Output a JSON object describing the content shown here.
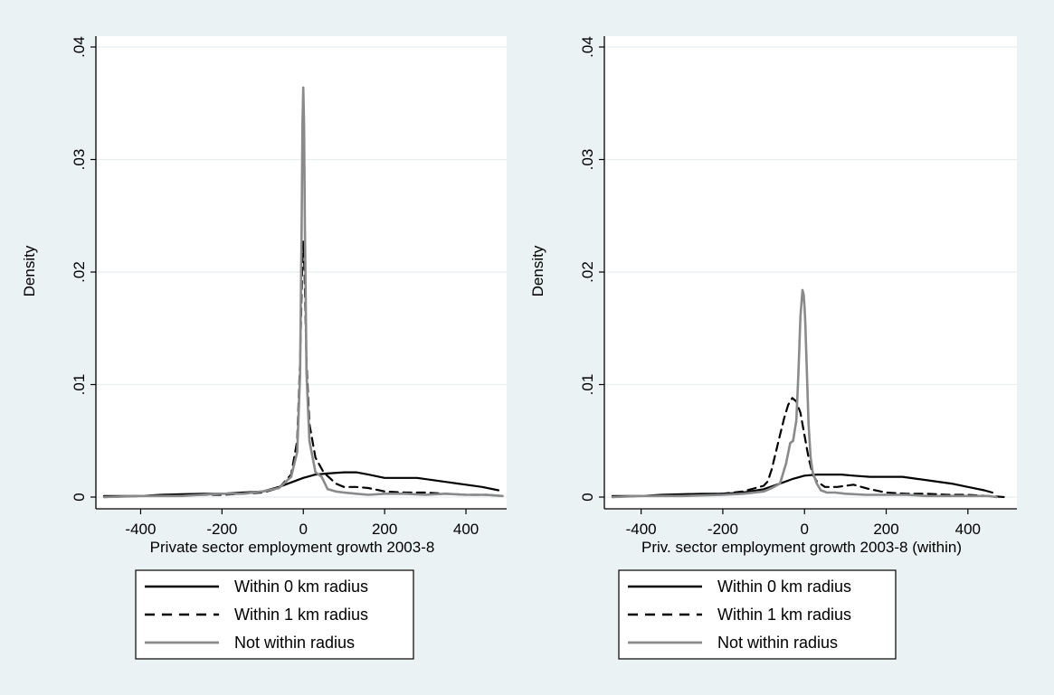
{
  "colors": {
    "outer_background": "#eaf2f3",
    "plot_background": "#ffffff",
    "gridline": "#e8eef0",
    "axis": "#000000",
    "within_0km": "#000000",
    "within_1km": "#000000",
    "not_within": "#8a8a8a"
  },
  "chart_data": [
    {
      "type": "line",
      "title": "",
      "xlabel": "Private sector employment growth 2003-8",
      "ylabel": "Density",
      "xlim": [
        -510,
        500
      ],
      "ylim": [
        0,
        0.04
      ],
      "xticks": [
        -400,
        -200,
        0,
        200,
        400
      ],
      "xtick_labels": [
        "-400",
        "-200",
        "0",
        "200",
        "400"
      ],
      "yticks": [
        0,
        0.01,
        0.02,
        0.03,
        0.04
      ],
      "ytick_labels": [
        "0",
        ".01",
        ".02",
        ".03",
        ".04"
      ],
      "grid": true,
      "legend_position": "bottom",
      "legend": [
        "Within 0 km radius",
        "Within 1 km radius",
        "Not within radius"
      ],
      "series": [
        {
          "name": "Within 0 km radius",
          "style": "solid",
          "color": "#000000",
          "x": [
            -490,
            -400,
            -350,
            -300,
            -250,
            -200,
            -150,
            -100,
            -60,
            -30,
            0,
            30,
            60,
            100,
            130,
            160,
            200,
            240,
            280,
            320,
            360,
            400,
            440,
            480
          ],
          "y": [
            0.0001,
            0.0001,
            0.0002,
            0.00025,
            0.0003,
            0.0003,
            0.0004,
            0.0005,
            0.0009,
            0.0013,
            0.0017,
            0.002,
            0.0021,
            0.0022,
            0.0022,
            0.002,
            0.0017,
            0.0017,
            0.0017,
            0.0015,
            0.0013,
            0.0011,
            0.0009,
            0.0006
          ]
        },
        {
          "name": "Within 1 km radius",
          "style": "dashed",
          "color": "#000000",
          "x": [
            -490,
            -400,
            -300,
            -200,
            -150,
            -100,
            -60,
            -30,
            -15,
            -8,
            -3,
            0,
            3,
            8,
            15,
            30,
            50,
            80,
            100,
            130,
            160,
            200,
            250,
            300,
            350,
            400,
            450,
            490
          ],
          "y": [
            0,
            0.0001,
            0.0002,
            0.0002,
            0.0003,
            0.0004,
            0.0008,
            0.002,
            0.005,
            0.012,
            0.02,
            0.0227,
            0.02,
            0.012,
            0.0065,
            0.0035,
            0.0022,
            0.0012,
            0.0009,
            0.0009,
            0.0008,
            0.0005,
            0.0004,
            0.0004,
            0.0003,
            0.0002,
            0.0002,
            0.0001
          ]
        },
        {
          "name": "Not within radius",
          "style": "solid",
          "color": "#8a8a8a",
          "x": [
            -490,
            -400,
            -300,
            -250,
            -200,
            -150,
            -100,
            -60,
            -30,
            -15,
            -8,
            -4,
            -2,
            0,
            2,
            4,
            8,
            15,
            30,
            45,
            60,
            80,
            100,
            130,
            160,
            200,
            250,
            300,
            350,
            400,
            450,
            490
          ],
          "y": [
            0,
            0.0001,
            0.0001,
            0.0002,
            0.0003,
            0.0003,
            0.0005,
            0.0008,
            0.0018,
            0.004,
            0.011,
            0.024,
            0.033,
            0.0364,
            0.033,
            0.024,
            0.011,
            0.005,
            0.0022,
            0.0018,
            0.0007,
            0.0005,
            0.0004,
            0.0003,
            0.0002,
            0.0003,
            0.0003,
            0.0002,
            0.0003,
            0.0002,
            0.0002,
            0.0001
          ]
        }
      ]
    },
    {
      "type": "line",
      "title": "",
      "xlabel": "Priv. sector employment growth 2003-8 (within)",
      "ylabel": "Density",
      "xlim": [
        -490,
        520
      ],
      "ylim": [
        0,
        0.04
      ],
      "xticks": [
        -400,
        -200,
        0,
        200,
        400
      ],
      "xtick_labels": [
        "-400",
        "-200",
        "0",
        "200",
        "400"
      ],
      "yticks": [
        0,
        0.01,
        0.02,
        0.03,
        0.04
      ],
      "ytick_labels": [
        "0",
        ".01",
        ".02",
        ".03",
        ".04"
      ],
      "grid": true,
      "legend_position": "bottom",
      "legend": [
        "Within 0 km radius",
        "Within 1 km radius",
        "Not within radius"
      ],
      "series": [
        {
          "name": "Within 0 km radius",
          "style": "solid",
          "color": "#000000",
          "x": [
            -470,
            -400,
            -350,
            -300,
            -250,
            -200,
            -150,
            -100,
            -60,
            -30,
            0,
            30,
            60,
            90,
            120,
            160,
            200,
            240,
            280,
            320,
            360,
            400,
            440,
            460
          ],
          "y": [
            0.0001,
            0.0001,
            0.0002,
            0.00025,
            0.0003,
            0.0003,
            0.0004,
            0.0007,
            0.0012,
            0.0016,
            0.0019,
            0.002,
            0.002,
            0.002,
            0.0019,
            0.0018,
            0.0018,
            0.0018,
            0.0016,
            0.0014,
            0.0012,
            0.0009,
            0.0006,
            0.0004
          ]
        },
        {
          "name": "Within 1 km radius",
          "style": "dashed",
          "color": "#000000",
          "x": [
            -470,
            -400,
            -300,
            -200,
            -150,
            -120,
            -100,
            -90,
            -80,
            -70,
            -60,
            -50,
            -40,
            -30,
            -20,
            -10,
            0,
            10,
            20,
            30,
            50,
            80,
            120,
            160,
            200,
            250,
            300,
            350,
            400,
            450,
            490
          ],
          "y": [
            0,
            0.0001,
            0.0002,
            0.0003,
            0.0005,
            0.0008,
            0.001,
            0.0014,
            0.0025,
            0.004,
            0.0055,
            0.007,
            0.0082,
            0.0088,
            0.0085,
            0.0075,
            0.0055,
            0.0035,
            0.002,
            0.0014,
            0.0009,
            0.0009,
            0.0011,
            0.0007,
            0.0004,
            0.0003,
            0.0003,
            0.0002,
            0.0002,
            0.0001,
            0
          ]
        },
        {
          "name": "Not within radius",
          "style": "solid",
          "color": "#8a8a8a",
          "x": [
            -470,
            -400,
            -300,
            -200,
            -150,
            -100,
            -80,
            -60,
            -45,
            -35,
            -28,
            -20,
            -15,
            -10,
            -5,
            -2,
            0,
            2,
            5,
            10,
            15,
            20,
            30,
            40,
            55,
            75,
            100,
            150,
            200,
            250,
            300,
            350,
            400,
            450,
            470
          ],
          "y": [
            0,
            0.0001,
            0.0001,
            0.0002,
            0.0003,
            0.0005,
            0.0008,
            0.0012,
            0.003,
            0.0048,
            0.005,
            0.0068,
            0.011,
            0.016,
            0.0184,
            0.018,
            0.017,
            0.0155,
            0.012,
            0.0065,
            0.0035,
            0.0022,
            0.0012,
            0.0006,
            0.0004,
            0.0004,
            0.0003,
            0.0002,
            0.0002,
            0.0002,
            0.0001,
            0.0001,
            0.0001,
            0.0001,
            0
          ]
        }
      ]
    }
  ]
}
